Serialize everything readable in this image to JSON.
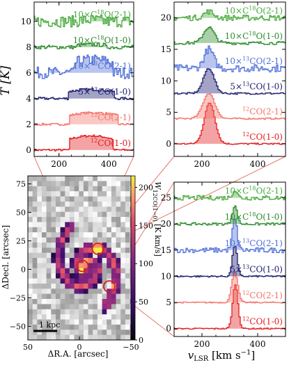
{
  "colors": {
    "12CO(1-0)": "#e41a1c",
    "12CO(2-1)": "#f4726a",
    "5x13CO(1-0)": "#1a1a6e",
    "10x13CO(2-1)": "#4f6fd8",
    "10xC18O(1-0)": "#2a8a2a",
    "10xC18O(2-1)": "#45a83a",
    "connector": "#e8756a",
    "circle": "#d62020"
  },
  "chart_data": [
    {
      "id": "panelA",
      "type": "line",
      "ylabel": "T [K]",
      "xlim": [
        100,
        500
      ],
      "ylim": [
        -0.5,
        11.5
      ],
      "xticks": [
        200,
        400
      ],
      "yticks": [
        0,
        2,
        4,
        6,
        8,
        10
      ],
      "series": [
        {
          "name": "12CO(1-0)",
          "label_pre": "12",
          "label_post": "CO(1-0)",
          "offset": 0,
          "center": 330,
          "width": 180,
          "amp": 1.1,
          "noise": 0.08,
          "shape": "flat"
        },
        {
          "name": "12CO(2-1)",
          "label_pre": "12",
          "label_post": "CO(2-1)",
          "offset": 2,
          "center": 340,
          "width": 200,
          "amp": 0.9,
          "noise": 0.08,
          "shape": "flat"
        },
        {
          "name": "5x13CO(1-0)",
          "label_pre": "5×13",
          "label_post": "CO(1-0)",
          "offset": 4,
          "center": 330,
          "width": 190,
          "amp": 0.7,
          "noise": 0.1,
          "shape": "flat"
        },
        {
          "name": "10x13CO(2-1)",
          "label_pre": "10×13",
          "label_post": "CO(2-1)",
          "offset": 6,
          "center": 340,
          "width": 160,
          "amp": 1.0,
          "noise": 0.45,
          "shape": "flat"
        },
        {
          "name": "10xC18O(1-0)",
          "label_pre": "10×C18",
          "label_post": "O(1-0)",
          "offset": 8,
          "center": 330,
          "width": 120,
          "amp": 0.2,
          "noise": 0.15,
          "shape": "flat"
        },
        {
          "name": "10xC18O(2-1)",
          "label_pre": "10×C18",
          "label_post": "O(2-1)",
          "offset": 10,
          "center": 330,
          "width": 100,
          "amp": 0.1,
          "noise": 0.45,
          "shape": "flat"
        }
      ]
    },
    {
      "id": "panelB",
      "type": "line",
      "xlim": [
        100,
        500
      ],
      "ylim": [
        -2,
        22.5
      ],
      "xticks": [
        200,
        400
      ],
      "yticks": [
        0,
        5,
        10,
        15,
        20
      ],
      "series": [
        {
          "name": "12CO(1-0)",
          "label_pre": "12",
          "label_post": "CO(1-0)",
          "offset": 0,
          "center": 228,
          "width": 45,
          "amp": 6.5,
          "noise": 0.12,
          "shape": "gauss"
        },
        {
          "name": "12CO(2-1)",
          "label_pre": "12",
          "label_post": "CO(2-1)",
          "offset": 4,
          "center": 225,
          "width": 50,
          "amp": 4.0,
          "noise": 0.12,
          "shape": "gauss"
        },
        {
          "name": "5x13CO(1-0)",
          "label_pre": "5×13",
          "label_post": "CO(1-0)",
          "offset": 8,
          "center": 225,
          "width": 45,
          "amp": 4.0,
          "noise": 0.15,
          "shape": "gauss"
        },
        {
          "name": "10x13CO(2-1)",
          "label_pre": "10×13",
          "label_post": "CO(2-1)",
          "offset": 12,
          "center": 225,
          "width": 40,
          "amp": 3.0,
          "noise": 0.6,
          "shape": "gauss"
        },
        {
          "name": "10xC18O(1-0)",
          "label_pre": "10×C18",
          "label_post": "O(1-0)",
          "offset": 16,
          "center": 225,
          "width": 45,
          "amp": 2.5,
          "noise": 0.25,
          "shape": "gauss"
        },
        {
          "name": "10xC18O(2-1)",
          "label_pre": "10×C18",
          "label_post": "O(2-1)",
          "offset": 20,
          "center": 225,
          "width": 40,
          "amp": 1.0,
          "noise": 0.45,
          "shape": "gauss"
        }
      ]
    },
    {
      "id": "panelC",
      "type": "line",
      "xlabel_pre": "v",
      "xlabel_sub": "LSR",
      "xlabel_post": " [km s",
      "xlabel_sup": "−1",
      "xlabel_end": "]",
      "xlim": [
        100,
        500
      ],
      "ylim": [
        -1.5,
        28
      ],
      "xticks": [
        200,
        400
      ],
      "yticks": [
        0,
        5,
        10,
        15,
        20,
        25
      ],
      "series": [
        {
          "name": "12CO(1-0)",
          "label_pre": "12",
          "label_post": "CO(1-0)",
          "offset": 0,
          "center": 320,
          "width": 22,
          "amp": 8.5,
          "noise": 0.12,
          "shape": "gauss"
        },
        {
          "name": "12CO(2-1)",
          "label_pre": "12",
          "label_post": "CO(2-1)",
          "offset": 5,
          "center": 318,
          "width": 25,
          "amp": 6.0,
          "noise": 0.12,
          "shape": "gauss"
        },
        {
          "name": "5x13CO(1-0)",
          "label_pre": "5×13",
          "label_post": "CO(1-0)",
          "offset": 10,
          "center": 318,
          "width": 20,
          "amp": 6.0,
          "noise": 0.15,
          "shape": "gauss"
        },
        {
          "name": "10x13CO(2-1)",
          "label_pre": "10×13",
          "label_post": "CO(2-1)",
          "offset": 15,
          "center": 318,
          "width": 20,
          "amp": 6.0,
          "noise": 0.5,
          "shape": "gauss"
        },
        {
          "name": "10xC18O(1-0)",
          "label_pre": "10×C18",
          "label_post": "O(1-0)",
          "offset": 20,
          "center": 318,
          "width": 20,
          "amp": 3.5,
          "noise": 0.25,
          "shape": "gauss"
        },
        {
          "name": "10xC18O(2-1)",
          "label_pre": "10×C18",
          "label_post": "O(2-1)",
          "offset": 25,
          "center": 318,
          "width": 20,
          "amp": 1.5,
          "noise": 0.45,
          "shape": "gauss"
        }
      ]
    },
    {
      "id": "map",
      "type": "heatmap",
      "xlabel": "ΔR.A. [arcsec]",
      "ylabel": "ΔDecl. [arcsec]",
      "xlim": [
        50,
        -50
      ],
      "ylim": [
        -62,
        82
      ],
      "xticks": [
        50,
        0,
        -50
      ],
      "yticks": [
        -50,
        -25,
        0,
        25,
        50,
        75
      ],
      "colorbar": {
        "label_pre": "W",
        "label_sub": "12CO(1−0)",
        "label_post": " [K km/s]",
        "range": [
          0,
          215
        ],
        "ticks": [
          0,
          50,
          100,
          150,
          200
        ]
      },
      "scalebar_label": "1 kpc",
      "circles": [
        {
          "x": -3,
          "y": 3
        },
        {
          "x": -18,
          "y": 18
        },
        {
          "x": -29,
          "y": -15
        }
      ]
    }
  ]
}
